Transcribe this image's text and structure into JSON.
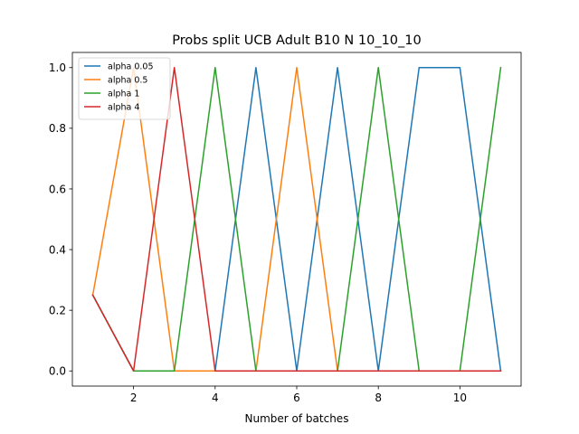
{
  "chart_data": {
    "type": "line",
    "title": "Probs split UCB Adult B10 N 10_10_10",
    "xlabel": "Number of batches",
    "ylabel": "",
    "xlim": [
      0.5,
      11.5
    ],
    "ylim": [
      -0.05,
      1.05
    ],
    "xticks": [
      2,
      4,
      6,
      8,
      10
    ],
    "xtick_labels": [
      "2",
      "4",
      "6",
      "8",
      "10"
    ],
    "yticks": [
      0.0,
      0.2,
      0.4,
      0.6,
      0.8,
      1.0
    ],
    "ytick_labels": [
      "0.0",
      "0.2",
      "0.4",
      "0.6",
      "0.8",
      "1.0"
    ],
    "grid": false,
    "legend_position": "top-left",
    "x": [
      1,
      2,
      3,
      4,
      5,
      6,
      7,
      8,
      9,
      10,
      11
    ],
    "series": [
      {
        "name": "alpha 0.05",
        "color": "#1f77b4",
        "values": [
          0.25,
          0.0,
          0.0,
          0.0,
          1.0,
          0.0,
          1.0,
          0.0,
          1.0,
          1.0,
          0.0
        ]
      },
      {
        "name": "alpha 0.5",
        "color": "#ff7f0e",
        "values": [
          0.25,
          1.0,
          0.0,
          0.0,
          0.0,
          1.0,
          0.0,
          0.0,
          0.0,
          0.0,
          0.0
        ]
      },
      {
        "name": "alpha 1",
        "color": "#2ca02c",
        "values": [
          0.25,
          0.0,
          0.0,
          1.0,
          0.0,
          0.0,
          0.0,
          1.0,
          0.0,
          0.0,
          1.0
        ]
      },
      {
        "name": "alpha 4",
        "color": "#d62728",
        "values": [
          0.25,
          0.0,
          1.0,
          0.0,
          0.0,
          0.0,
          0.0,
          0.0,
          0.0,
          0.0,
          0.0
        ]
      }
    ]
  }
}
